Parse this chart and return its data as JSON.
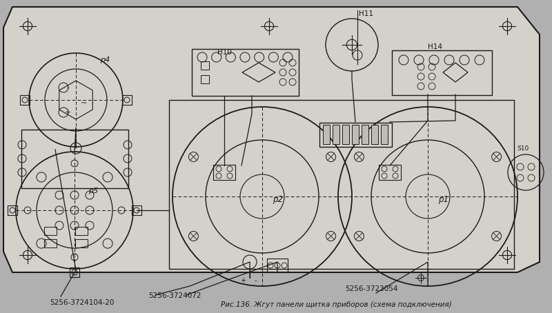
{
  "bg_color": "#c8c8c8",
  "panel_fill": "#d4d0ca",
  "line_color": "#1a1a1a",
  "title_text": "Рис.136. Жгут панели щитка приборов (схема подключения)",
  "caption_fontsize": 7.5,
  "fig_bg": "#b0b0b0",
  "labels": {
    "p4": "р4",
    "p5": "р5",
    "p2": "р2",
    "p1": "р1",
    "h10": "Н10",
    "h11": "Н11",
    "h14": "Н14",
    "s10": "S10",
    "ref1": "5256-3724104-20",
    "ref2": "5256-3724072",
    "ref3": "5256-3723054"
  }
}
